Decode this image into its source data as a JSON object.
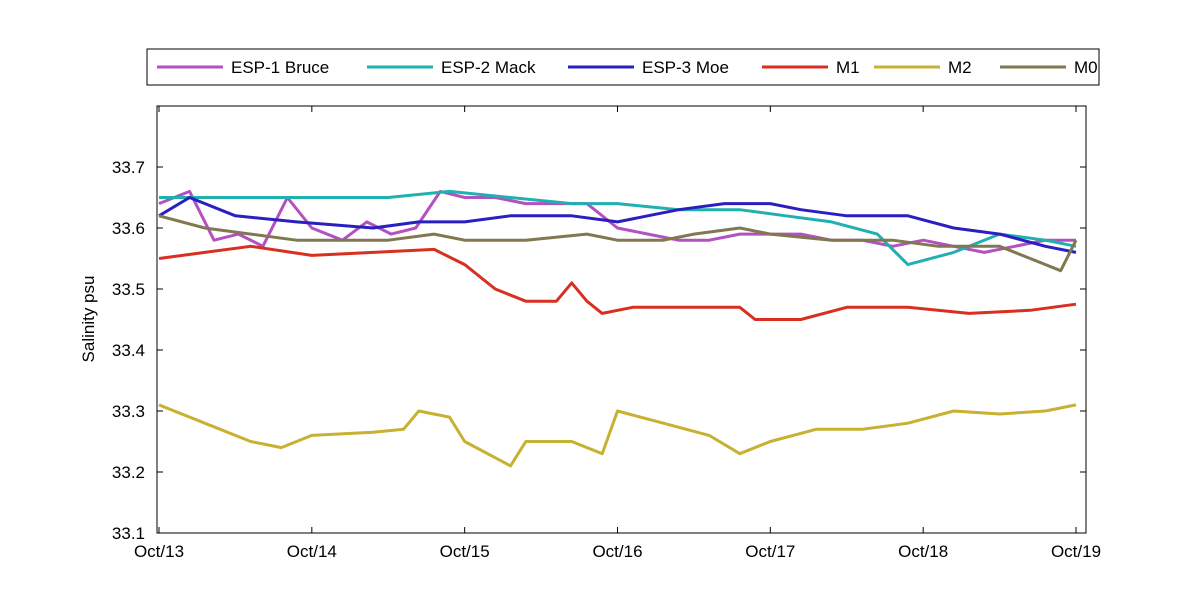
{
  "chart_data": {
    "type": "line",
    "title": "",
    "xlabel": "",
    "ylabel": "Salinity psu",
    "xlim": [
      "2013-10-13",
      "2013-10-19"
    ],
    "ylim": [
      33.1,
      33.8
    ],
    "x_ticks": [
      "2013-10-13",
      "2013-10-14",
      "2013-10-15",
      "2013-10-16",
      "2013-10-17",
      "2013-10-18",
      "2013-10-19"
    ],
    "x_tick_labels": [
      "Oct/13",
      "Oct/14",
      "Oct/15",
      "Oct/16",
      "Oct/17",
      "Oct/18",
      "Oct/19"
    ],
    "y_ticks": [
      33.1,
      33.2,
      33.3,
      33.4,
      33.5,
      33.6,
      33.7
    ],
    "y_tick_labels": [
      "33.1",
      "33.2",
      "33.3",
      "33.4",
      "33.5",
      "33.6",
      "33.7"
    ],
    "grid": false,
    "legend_position": "top",
    "series": [
      {
        "name": "ESP-1 Bruce",
        "color": "#b450c0",
        "x": [
          "2013-10-13 00:00",
          "2013-10-13 04:48",
          "2013-10-13 08:38",
          "2013-10-13 12:29",
          "2013-10-13 16:19",
          "2013-10-13 20:10",
          "2013-10-14 00:00",
          "2013-10-14 04:48",
          "2013-10-14 08:38",
          "2013-10-14 12:29",
          "2013-10-14 16:19",
          "2013-10-14 20:10",
          "2013-10-15 00:00",
          "2013-10-15 04:48",
          "2013-10-15 09:36",
          "2013-10-15 14:24",
          "2013-10-15 19:12",
          "2013-10-16 00:00",
          "2013-10-16 04:48",
          "2013-10-16 09:36",
          "2013-10-16 14:24",
          "2013-10-16 19:12",
          "2013-10-17 00:00",
          "2013-10-17 04:48",
          "2013-10-17 09:36",
          "2013-10-17 14:24",
          "2013-10-17 19:12",
          "2013-10-18 00:00",
          "2013-10-18 04:48",
          "2013-10-18 09:36",
          "2013-10-18 14:24",
          "2013-10-18 19:12",
          "2013-10-19 00:00"
        ],
        "values": [
          33.64,
          33.66,
          33.58,
          33.59,
          33.57,
          33.65,
          33.6,
          33.58,
          33.61,
          33.59,
          33.6,
          33.66,
          33.65,
          33.65,
          33.64,
          33.64,
          33.64,
          33.6,
          33.59,
          33.58,
          33.58,
          33.59,
          33.59,
          33.59,
          33.58,
          33.58,
          33.57,
          33.58,
          33.57,
          33.56,
          33.57,
          33.58,
          33.58
        ]
      },
      {
        "name": "ESP-2 Mack",
        "color": "#20b0b0",
        "x": [
          "2013-10-13 00:00",
          "2013-10-13 12:00",
          "2013-10-14 00:00",
          "2013-10-14 12:00",
          "2013-10-14 21:36",
          "2013-10-15 07:12",
          "2013-10-15 16:48",
          "2013-10-16 00:00",
          "2013-10-16 09:36",
          "2013-10-16 19:12",
          "2013-10-17 02:24",
          "2013-10-17 09:36",
          "2013-10-17 16:48",
          "2013-10-17 21:36",
          "2013-10-18 04:48",
          "2013-10-18 12:00",
          "2013-10-18 19:12",
          "2013-10-19 00:00"
        ],
        "values": [
          33.65,
          33.65,
          33.65,
          33.65,
          33.66,
          33.65,
          33.64,
          33.64,
          33.63,
          33.63,
          33.62,
          33.61,
          33.59,
          33.54,
          33.56,
          33.59,
          33.58,
          33.57
        ]
      },
      {
        "name": "ESP-3 Moe",
        "color": "#2a20c0",
        "x": [
          "2013-10-13 00:00",
          "2013-10-13 04:48",
          "2013-10-13 12:00",
          "2013-10-13 21:36",
          "2013-10-14 09:36",
          "2013-10-14 16:48",
          "2013-10-15 00:00",
          "2013-10-15 07:12",
          "2013-10-15 16:48",
          "2013-10-16 00:00",
          "2013-10-16 09:36",
          "2013-10-16 16:48",
          "2013-10-17 00:00",
          "2013-10-17 04:48",
          "2013-10-17 12:00",
          "2013-10-17 21:36",
          "2013-10-18 04:48",
          "2013-10-18 12:00",
          "2013-10-18 19:12",
          "2013-10-19 00:00"
        ],
        "values": [
          33.62,
          33.65,
          33.62,
          33.61,
          33.6,
          33.61,
          33.61,
          33.62,
          33.62,
          33.61,
          33.63,
          33.64,
          33.64,
          33.63,
          33.62,
          33.62,
          33.6,
          33.59,
          33.57,
          33.56
        ]
      },
      {
        "name": "M1",
        "color": "#d83020",
        "x": [
          "2013-10-13 00:00",
          "2013-10-13 07:12",
          "2013-10-13 14:24",
          "2013-10-14 00:00",
          "2013-10-14 09:36",
          "2013-10-14 19:12",
          "2013-10-15 00:00",
          "2013-10-15 04:48",
          "2013-10-15 09:36",
          "2013-10-15 14:24",
          "2013-10-15 16:48",
          "2013-10-15 19:12",
          "2013-10-15 21:36",
          "2013-10-16 02:24",
          "2013-10-16 12:00",
          "2013-10-16 19:12",
          "2013-10-16 21:36",
          "2013-10-17 04:48",
          "2013-10-17 12:00",
          "2013-10-17 21:36",
          "2013-10-18 07:12",
          "2013-10-18 16:48",
          "2013-10-19 00:00"
        ],
        "values": [
          33.55,
          33.56,
          33.57,
          33.555,
          33.56,
          33.565,
          33.54,
          33.5,
          33.48,
          33.48,
          33.51,
          33.48,
          33.46,
          33.47,
          33.47,
          33.47,
          33.45,
          33.45,
          33.47,
          33.47,
          33.46,
          33.465,
          33.475
        ]
      },
      {
        "name": "M2",
        "color": "#c8b030",
        "x": [
          "2013-10-13 00:00",
          "2013-10-13 07:12",
          "2013-10-13 14:24",
          "2013-10-13 19:12",
          "2013-10-14 00:00",
          "2013-10-14 09:36",
          "2013-10-14 14:24",
          "2013-10-14 16:48",
          "2013-10-14 21:36",
          "2013-10-15 00:00",
          "2013-10-15 07:12",
          "2013-10-15 09:36",
          "2013-10-15 16:48",
          "2013-10-15 21:36",
          "2013-10-16 00:00",
          "2013-10-16 07:12",
          "2013-10-16 14:24",
          "2013-10-16 19:12",
          "2013-10-17 00:00",
          "2013-10-17 07:12",
          "2013-10-17 14:24",
          "2013-10-17 21:36",
          "2013-10-18 04:48",
          "2013-10-18 12:00",
          "2013-10-18 19:12",
          "2013-10-19 00:00"
        ],
        "values": [
          33.31,
          33.28,
          33.25,
          33.24,
          33.26,
          33.265,
          33.27,
          33.3,
          33.29,
          33.25,
          33.21,
          33.25,
          33.25,
          33.23,
          33.3,
          33.28,
          33.26,
          33.23,
          33.25,
          33.27,
          33.27,
          33.28,
          33.3,
          33.295,
          33.3,
          33.31
        ]
      },
      {
        "name": "M0",
        "color": "#807850",
        "x": [
          "2013-10-13 00:00",
          "2013-10-13 07:12",
          "2013-10-13 14:24",
          "2013-10-13 21:36",
          "2013-10-14 04:48",
          "2013-10-14 12:00",
          "2013-10-14 19:12",
          "2013-10-15 00:00",
          "2013-10-15 09:36",
          "2013-10-15 19:12",
          "2013-10-16 00:00",
          "2013-10-16 07:12",
          "2013-10-16 12:00",
          "2013-10-16 19:12",
          "2013-10-17 00:00",
          "2013-10-17 09:36",
          "2013-10-17 19:12",
          "2013-10-18 02:24",
          "2013-10-18 12:00",
          "2013-10-18 16:48",
          "2013-10-18 21:36",
          "2013-10-19 00:00"
        ],
        "values": [
          33.62,
          33.6,
          33.59,
          33.58,
          33.58,
          33.58,
          33.59,
          33.58,
          33.58,
          33.59,
          33.58,
          33.58,
          33.59,
          33.6,
          33.59,
          33.58,
          33.58,
          33.57,
          33.57,
          33.55,
          33.53,
          33.58
        ]
      }
    ]
  }
}
